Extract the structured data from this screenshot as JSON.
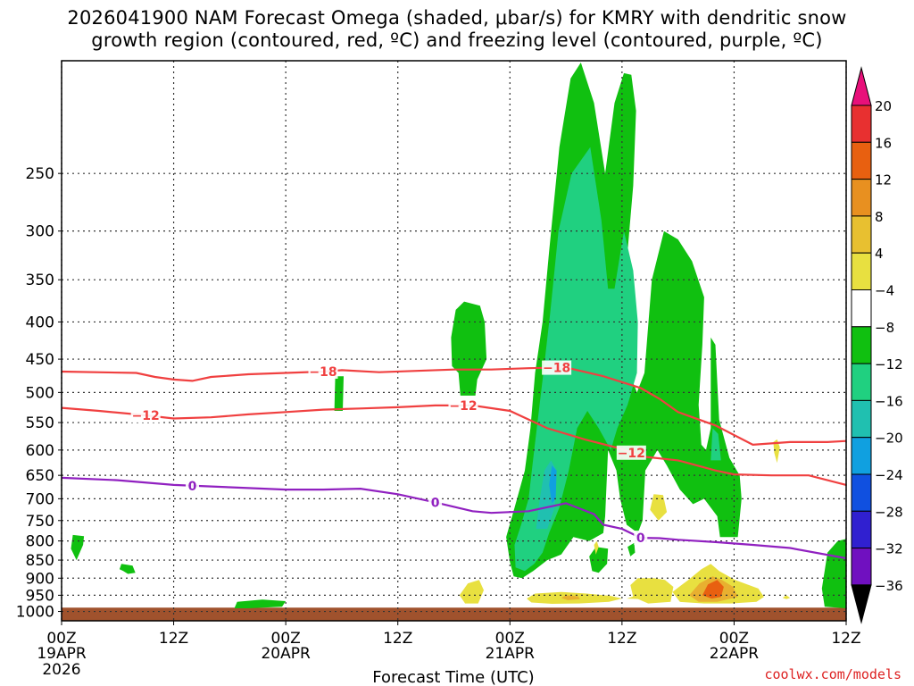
{
  "title": "2026041900 NAM Forecast Omega (shaded, μbar/s) for KMRY with dendritic snow\ngrowth region (contoured, red, ºC) and freezing level (contoured, purple, ºC)",
  "credit": "coolwx.com/models",
  "chart_data": {
    "type": "time-height cross section",
    "title": "2026041900 NAM Forecast Omega (shaded, μbar/s) for KMRY with dendritic snow growth region (contoured, red, ºC) and freezing level (contoured, purple, ºC)",
    "xlabel": "Forecast Time (UTC)",
    "ylabel": "",
    "x_range_hours": [
      0,
      84
    ],
    "y_range_hpa": [
      1030,
      175
    ],
    "y_scale": "log-pressure",
    "grid": true,
    "x_ticks": [
      {
        "h": 0,
        "label": "00Z",
        "sub": [
          "19APR",
          "2026"
        ]
      },
      {
        "h": 12,
        "label": "12Z",
        "sub": []
      },
      {
        "h": 24,
        "label": "00Z",
        "sub": [
          "20APR"
        ]
      },
      {
        "h": 36,
        "label": "12Z",
        "sub": []
      },
      {
        "h": 48,
        "label": "00Z",
        "sub": [
          "21APR"
        ]
      },
      {
        "h": 60,
        "label": "12Z",
        "sub": []
      },
      {
        "h": 72,
        "label": "00Z",
        "sub": [
          "22APR"
        ]
      },
      {
        "h": 84,
        "label": "12Z",
        "sub": []
      }
    ],
    "y_ticks": [
      250,
      300,
      350,
      400,
      450,
      500,
      550,
      600,
      650,
      700,
      750,
      800,
      850,
      900,
      950,
      1000
    ],
    "colorbar": {
      "labels": [
        "20",
        "16",
        "12",
        "8",
        "4",
        "−4",
        "−8",
        "−12",
        "−16",
        "−20",
        "−24",
        "−28",
        "−32",
        "−36"
      ],
      "colors": [
        "#e8107a",
        "#e83030",
        "#e86010",
        "#e89020",
        "#e8c030",
        "#e8e040",
        "#ffffff",
        "#10c010",
        "#20d080",
        "#20c0b0",
        "#10a0e0",
        "#1050e0",
        "#3020d0",
        "#7010c0",
        "#a010c0",
        "#a0a0a0",
        "#000000"
      ]
    },
    "ground_color": "#a0522d",
    "contours": [
      {
        "name": "-18",
        "color": "#f04040",
        "label": "−18",
        "points": [
          [
            0,
            468
          ],
          [
            8,
            470
          ],
          [
            10,
            476
          ],
          [
            12,
            480
          ],
          [
            14,
            482
          ],
          [
            16,
            476
          ],
          [
            20,
            472
          ],
          [
            24,
            470
          ],
          [
            28,
            468
          ],
          [
            30,
            466
          ],
          [
            34,
            469
          ],
          [
            38,
            467
          ],
          [
            42,
            465
          ],
          [
            46,
            465
          ],
          [
            50,
            463
          ],
          [
            54,
            462
          ],
          [
            58,
            475
          ],
          [
            62,
            493
          ],
          [
            64,
            510
          ],
          [
            66,
            532
          ],
          [
            70,
            555
          ],
          [
            74,
            590
          ],
          [
            78,
            585
          ],
          [
            82,
            585
          ],
          [
            84,
            583
          ]
        ],
        "labels_at": [
          28,
          53
        ]
      },
      {
        "name": "-12",
        "color": "#f04040",
        "label": "−12",
        "points": [
          [
            0,
            525
          ],
          [
            4,
            530
          ],
          [
            8,
            536
          ],
          [
            12,
            543
          ],
          [
            16,
            541
          ],
          [
            20,
            536
          ],
          [
            24,
            532
          ],
          [
            28,
            528
          ],
          [
            32,
            526
          ],
          [
            36,
            524
          ],
          [
            40,
            521
          ],
          [
            44,
            521
          ],
          [
            48,
            530
          ],
          [
            52,
            560
          ],
          [
            56,
            580
          ],
          [
            60,
            598
          ],
          [
            62,
            612
          ],
          [
            66,
            620
          ],
          [
            70,
            640
          ],
          [
            72,
            648
          ],
          [
            76,
            650
          ],
          [
            80,
            650
          ],
          [
            84,
            670
          ]
        ],
        "labels_at": [
          9,
          43,
          61
        ]
      },
      {
        "name": "0",
        "color": "#9020c0",
        "label": "0",
        "points": [
          [
            0,
            655
          ],
          [
            6,
            660
          ],
          [
            12,
            670
          ],
          [
            18,
            675
          ],
          [
            24,
            680
          ],
          [
            28,
            680
          ],
          [
            32,
            678
          ],
          [
            36,
            690
          ],
          [
            40,
            708
          ],
          [
            44,
            728
          ],
          [
            46,
            732
          ],
          [
            50,
            728
          ],
          [
            54,
            710
          ],
          [
            57,
            735
          ],
          [
            58,
            760
          ],
          [
            60,
            770
          ],
          [
            62,
            792
          ],
          [
            64,
            793
          ],
          [
            66,
            797
          ],
          [
            70,
            803
          ],
          [
            74,
            810
          ],
          [
            78,
            818
          ],
          [
            84,
            845
          ]
        ],
        "labels_at": [
          14,
          40,
          62
        ]
      }
    ],
    "shaded_regions": [
      {
        "name": "main-green",
        "level": "-4",
        "color": "#10c010"
      },
      {
        "name": "main-teal",
        "level": "-8",
        "color": "#20d080"
      },
      {
        "name": "core-cyan",
        "level": "-12",
        "color": "#20c0b0"
      },
      {
        "name": "core-blue",
        "level": "-16",
        "color": "#10a0e0"
      },
      {
        "name": "rise-yellow",
        "level": "4",
        "color": "#e8e040"
      },
      {
        "name": "rise-orange",
        "level": "8",
        "color": "#e8b030"
      },
      {
        "name": "rise-peak",
        "level": "12",
        "color": "#e86010"
      }
    ]
  }
}
